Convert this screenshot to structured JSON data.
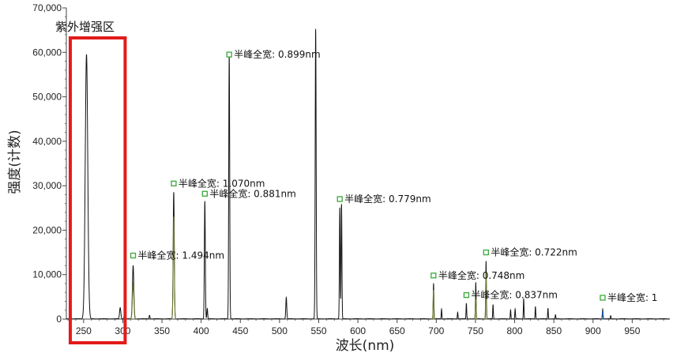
{
  "chart_data": {
    "type": "line",
    "xlabel": "波长(nm)",
    "ylabel": "强度(计数)",
    "xlim": [
      228,
      998
    ],
    "ylim": [
      0,
      70000
    ],
    "x_ticks": [
      "250",
      "300",
      "350",
      "400",
      "450",
      "500",
      "550",
      "600",
      "650",
      "700",
      "750",
      "800",
      "850",
      "900",
      "950"
    ],
    "y_ticks": [
      "0",
      "10,000",
      "20,000",
      "30,000",
      "40,000",
      "50,000",
      "60,000",
      "70,000"
    ],
    "grid": false,
    "region": {
      "label": "紫外增强区",
      "x_range": [
        233,
        303
      ],
      "color": "#e31b1b"
    },
    "series": [
      {
        "color": "#111111",
        "peaks": [
          {
            "x": 253.7,
            "y": 59500,
            "w": 1.6
          },
          {
            "x": 296.7,
            "y": 2500,
            "w": 0.8
          },
          {
            "x": 302.2,
            "y": 1200,
            "w": 0.6
          },
          {
            "x": 313.2,
            "y": 12000,
            "w": 0.9
          },
          {
            "x": 334.1,
            "y": 800,
            "w": 0.5
          },
          {
            "x": 365.0,
            "y": 28500,
            "w": 0.7
          },
          {
            "x": 404.7,
            "y": 26500,
            "w": 0.6
          },
          {
            "x": 407.8,
            "y": 2300,
            "w": 0.5
          },
          {
            "x": 435.8,
            "y": 59500,
            "w": 0.6
          },
          {
            "x": 508.6,
            "y": 4800,
            "w": 0.6
          },
          {
            "x": 546.1,
            "y": 65200,
            "w": 0.6
          },
          {
            "x": 576.9,
            "y": 25000,
            "w": 0.5
          },
          {
            "x": 579.1,
            "y": 25800,
            "w": 0.5
          },
          {
            "x": 696.5,
            "y": 8000,
            "w": 0.4
          },
          {
            "x": 706.7,
            "y": 2200,
            "w": 0.4
          },
          {
            "x": 727.3,
            "y": 1500,
            "w": 0.4
          },
          {
            "x": 738.4,
            "y": 3500,
            "w": 0.4
          },
          {
            "x": 750.4,
            "y": 8200,
            "w": 0.4
          },
          {
            "x": 763.5,
            "y": 13000,
            "w": 0.4
          },
          {
            "x": 772.4,
            "y": 3200,
            "w": 0.4
          },
          {
            "x": 794.8,
            "y": 2000,
            "w": 0.4
          },
          {
            "x": 800.6,
            "y": 2200,
            "w": 0.4
          },
          {
            "x": 811.5,
            "y": 4600,
            "w": 0.4
          },
          {
            "x": 826.5,
            "y": 2800,
            "w": 0.4
          },
          {
            "x": 842.5,
            "y": 2400,
            "w": 0.4
          },
          {
            "x": 852.1,
            "y": 900,
            "w": 0.4
          },
          {
            "x": 912.3,
            "y": 2200,
            "w": 0.4
          },
          {
            "x": 922.5,
            "y": 700,
            "w": 0.4
          }
        ]
      },
      {
        "color": "#6f7a2c",
        "peaks": [
          {
            "x": 313.2,
            "y": 8000,
            "w": 0.9
          },
          {
            "x": 365.0,
            "y": 23000,
            "w": 0.7
          },
          {
            "x": 696.5,
            "y": 6500,
            "w": 0.5
          },
          {
            "x": 750.4,
            "y": 6000,
            "w": 0.5
          },
          {
            "x": 763.5,
            "y": 10500,
            "w": 0.5
          }
        ]
      },
      {
        "color": "#1a4fa0",
        "peaks": [
          {
            "x": 912.3,
            "y": 1800,
            "w": 0.5
          }
        ]
      }
    ],
    "annotations": [
      {
        "text": "半峰全宽: 1.494nm",
        "x": 313.2,
        "y": 14300
      },
      {
        "text": "半峰全宽: 1.070nm",
        "x": 365.0,
        "y": 30500
      },
      {
        "text": "半峰全宽: 0.881nm",
        "x": 404.7,
        "y": 28200
      },
      {
        "text": "半峰全宽: 0.899nm",
        "x": 435.8,
        "y": 59500
      },
      {
        "text": "半峰全宽: 0.779nm",
        "x": 576.9,
        "y": 27000
      },
      {
        "text": "半峰全宽: 0.748nm",
        "x": 696.5,
        "y": 9800
      },
      {
        "text": "半峰全宽: 0.722nm",
        "x": 763.5,
        "y": 15000
      },
      {
        "text": "半峰全宽: 0.837nm",
        "x": 738.4,
        "y": 5400
      },
      {
        "text": "半峰全宽: 1",
        "x": 912.3,
        "y": 4800
      }
    ],
    "marker_color": "#3aa83a"
  }
}
